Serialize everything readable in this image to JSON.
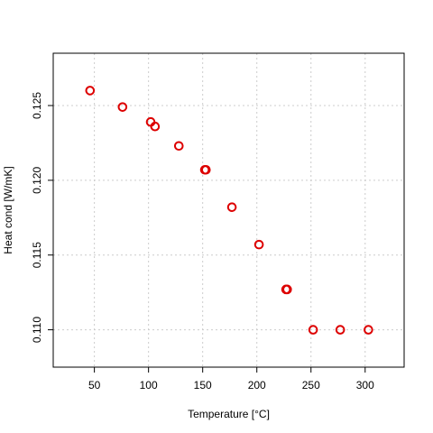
{
  "chart_data": {
    "type": "scatter",
    "title": "",
    "xlabel": "Temperature [°C]",
    "ylabel": "Heat cond [W/mK]",
    "xlim": [
      12,
      336
    ],
    "ylim": [
      0.1075,
      0.1285
    ],
    "xticks": [
      50,
      100,
      150,
      200,
      250,
      300
    ],
    "yticks": [
      0.11,
      0.115,
      0.12,
      0.125
    ],
    "grid": true,
    "marker": "open-circle",
    "marker_color": "#dd0000",
    "grid_color": "#cccccc",
    "series": [
      {
        "x": [
          46,
          76,
          102,
          106,
          128,
          152,
          153,
          177,
          202,
          227,
          228,
          252,
          277,
          303
        ],
        "y": [
          0.126,
          0.1249,
          0.1239,
          0.1236,
          0.1223,
          0.1207,
          0.1207,
          0.1182,
          0.1157,
          0.1127,
          0.1127,
          0.11,
          0.11,
          0.11
        ]
      }
    ]
  }
}
